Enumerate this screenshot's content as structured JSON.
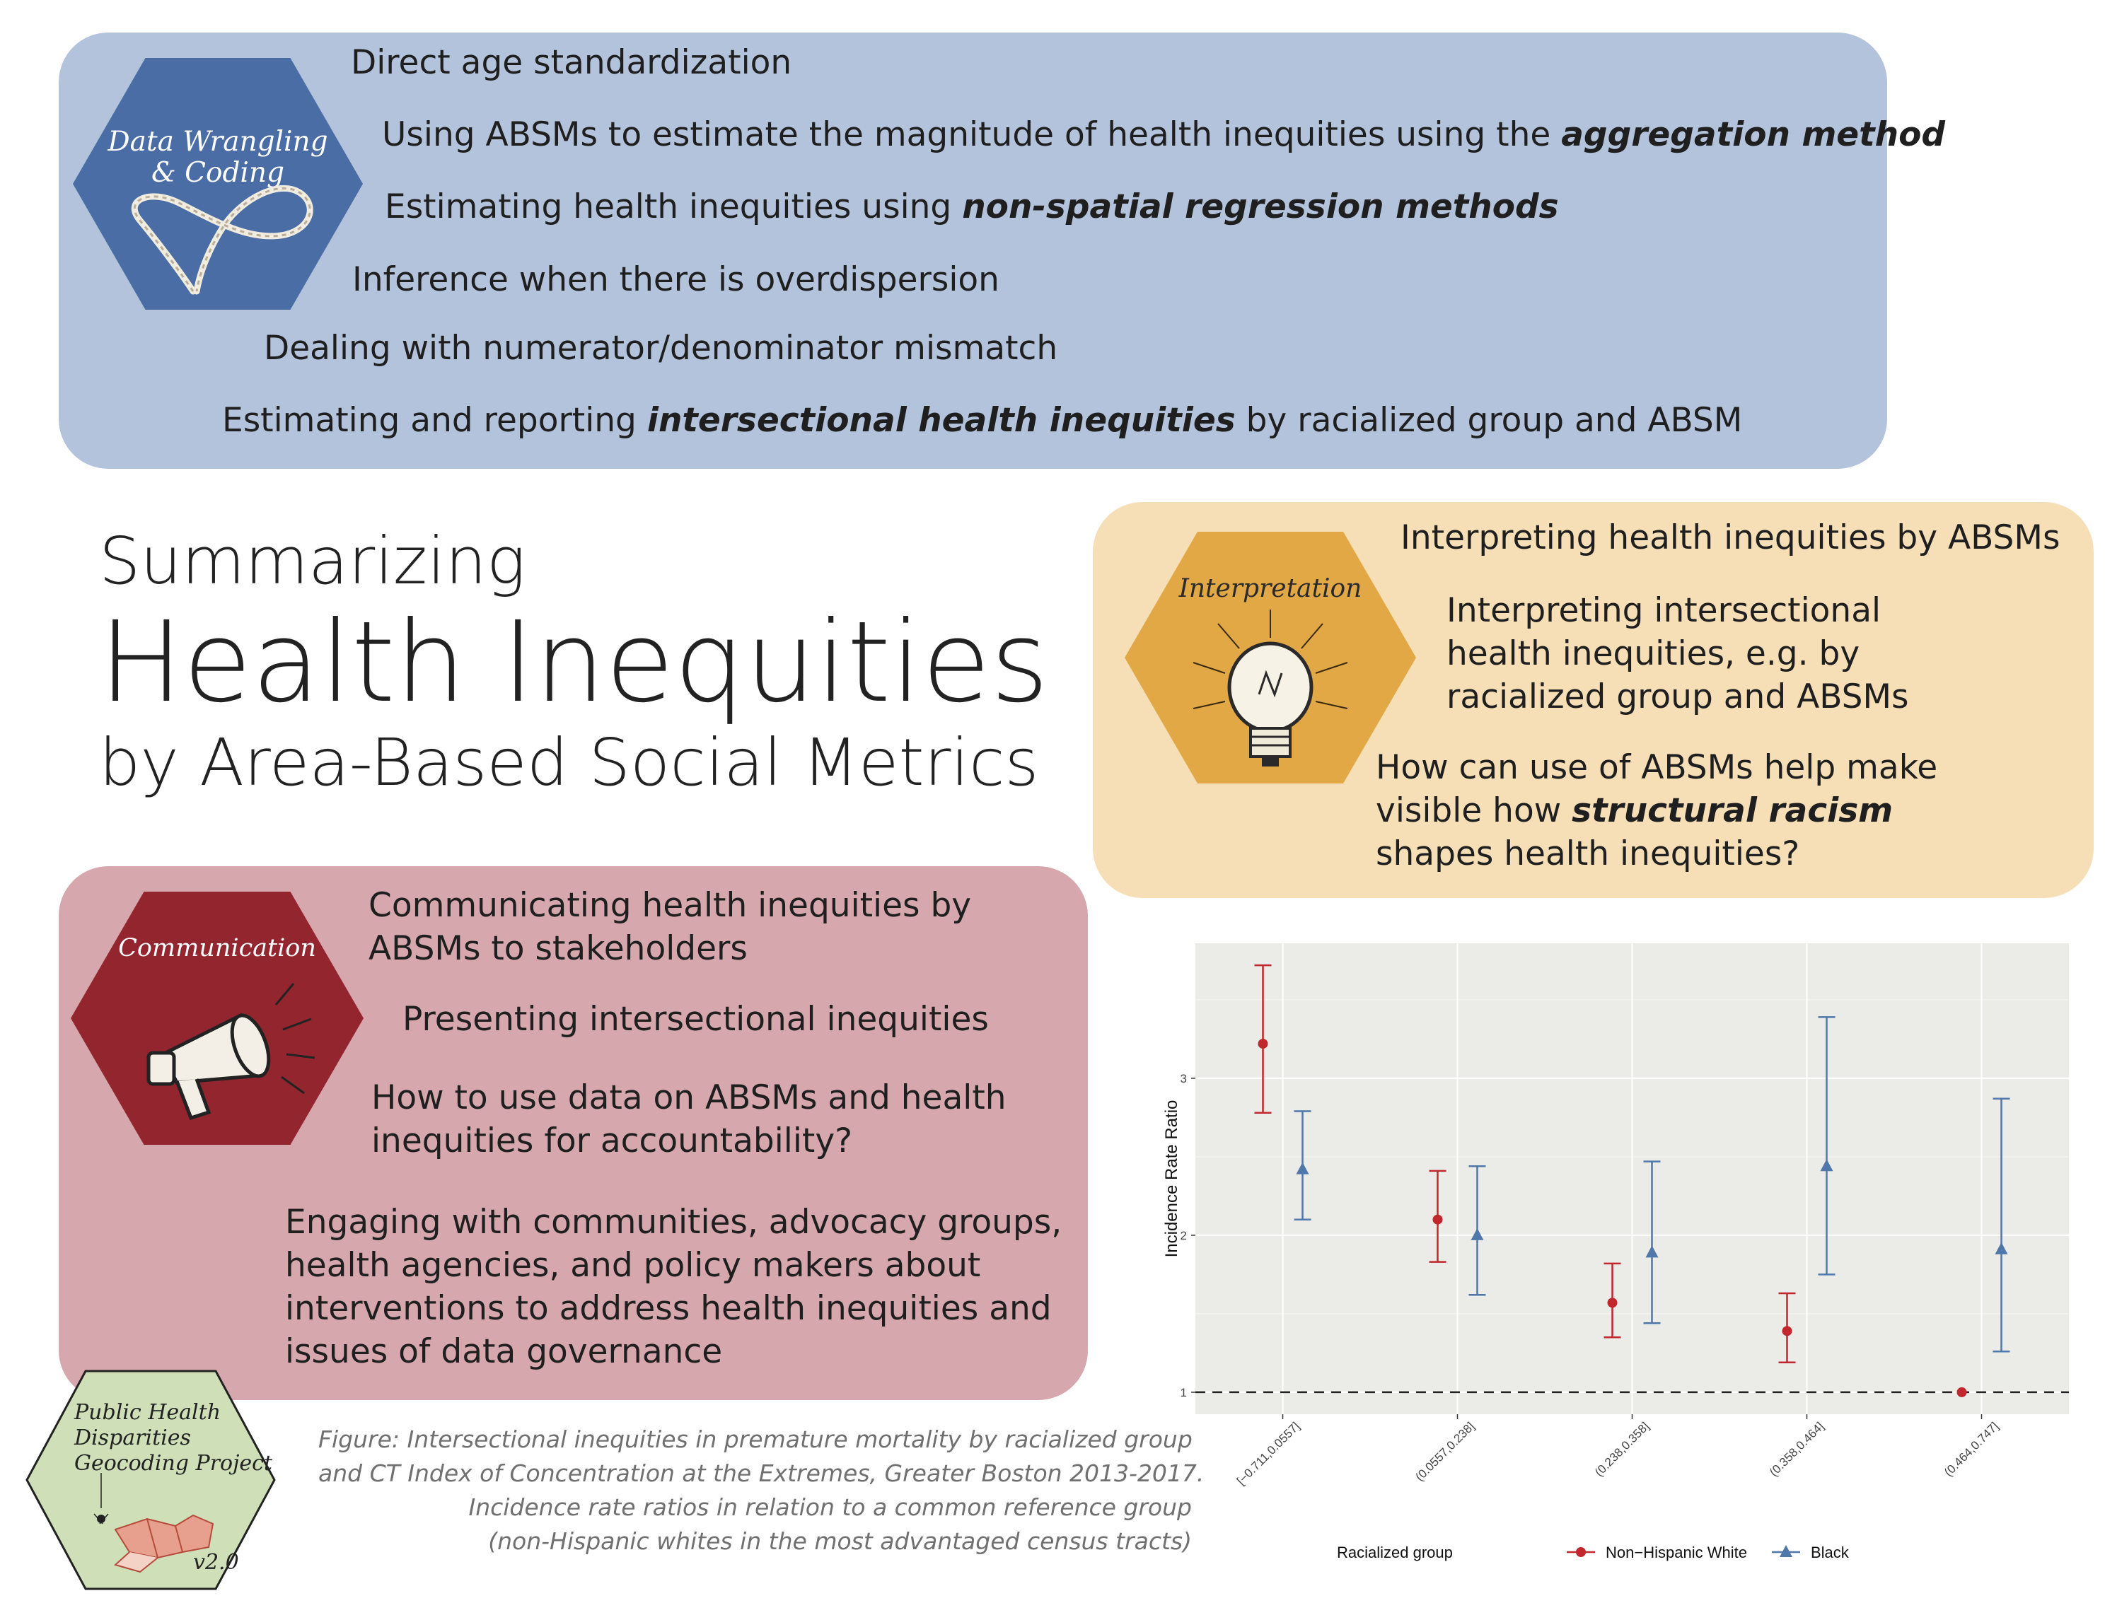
{
  "title": {
    "line1": "Summarizing",
    "line2": "Health Inequities",
    "line3": "by Area-Based Social Metrics"
  },
  "wrangling": {
    "hex_label_1": "Data Wrangling",
    "hex_label_2": "& Coding",
    "items": [
      {
        "pre": "Direct age standardization",
        "bold": "",
        "post": ""
      },
      {
        "pre": "Using ABSMs to estimate the magnitude of health inequities using the ",
        "bold": "aggregation method",
        "post": ""
      },
      {
        "pre": "Estimating health inequities using ",
        "bold": "non-spatial regression methods",
        "post": ""
      },
      {
        "pre": "Inference when there is overdispersion",
        "bold": "",
        "post": ""
      },
      {
        "pre": "Dealing with numerator/denominator mismatch",
        "bold": "",
        "post": ""
      },
      {
        "pre": "Estimating and reporting ",
        "bold": "intersectional health inequities",
        "post": " by racialized group and ABSM"
      }
    ]
  },
  "interpretation": {
    "hex_label": "Interpretation",
    "items": [
      {
        "pre": "Interpreting health inequities by ABSMs",
        "bold": "",
        "post": ""
      },
      {
        "pre": "Interpreting intersectional health inequities, e.g. by racialized group and ABSMs",
        "bold": "",
        "post": ""
      },
      {
        "pre": "How can use of ABSMs help make visible how ",
        "bold": "structural racism",
        "post": " shapes health inequities?"
      }
    ]
  },
  "communication": {
    "hex_label": "Communication",
    "items": [
      {
        "pre": "Communicating health inequities by ABSMs to stakeholders",
        "bold": "",
        "post": ""
      },
      {
        "pre": "Presenting intersectional inequities",
        "bold": "",
        "post": ""
      },
      {
        "pre": "How to use data on ABSMs and health inequities for accountability?",
        "bold": "",
        "post": ""
      },
      {
        "pre": "Engaging with communities,  advocacy groups, health agencies, and policy makers about interventions to address health inequities and issues of data governance",
        "bold": "",
        "post": ""
      }
    ]
  },
  "caption": {
    "lines": [
      "Figure: Intersectional inequities in premature mortality by racialized group",
      "and CT Index of Concentration at the Extremes, Greater Boston 2013-2017.",
      "Incidence rate ratios in relation to a common reference group",
      "(non-Hispanic whites in the most advantaged census tracts)"
    ]
  },
  "logo": {
    "lines": [
      "Public Health",
      "Disparities",
      "Geocoding Project"
    ],
    "version": "v2.0"
  },
  "chart_data": {
    "type": "scatter",
    "title": "",
    "xlabel": "",
    "ylabel": "Incidence Rate Ratio",
    "categories": [
      "[−0.711,0.0557]",
      "(0.0557,0.238]",
      "(0.238,0.358]",
      "(0.358,0.464]",
      "(0.464,0.747]"
    ],
    "ylim": [
      0.86,
      3.86
    ],
    "yticks": [
      1,
      2,
      3
    ],
    "reference_line": 1,
    "grid": true,
    "legend_title": "Racialized group",
    "legend_position": "bottom",
    "series": [
      {
        "name": "Non−Hispanic White",
        "color": "#c1272d",
        "marker": "circle",
        "values": [
          3.22,
          2.1,
          1.57,
          1.39,
          1.0
        ],
        "lower": [
          2.78,
          1.83,
          1.35,
          1.19,
          null
        ],
        "upper": [
          3.72,
          2.41,
          1.82,
          1.63,
          null
        ]
      },
      {
        "name": "Black",
        "color": "#4f77aa",
        "marker": "triangle",
        "values": [
          2.42,
          2.0,
          1.89,
          2.44,
          1.91
        ],
        "lower": [
          2.1,
          1.62,
          1.44,
          1.75,
          1.26
        ],
        "upper": [
          2.79,
          2.44,
          2.47,
          3.39,
          2.87
        ]
      }
    ]
  }
}
